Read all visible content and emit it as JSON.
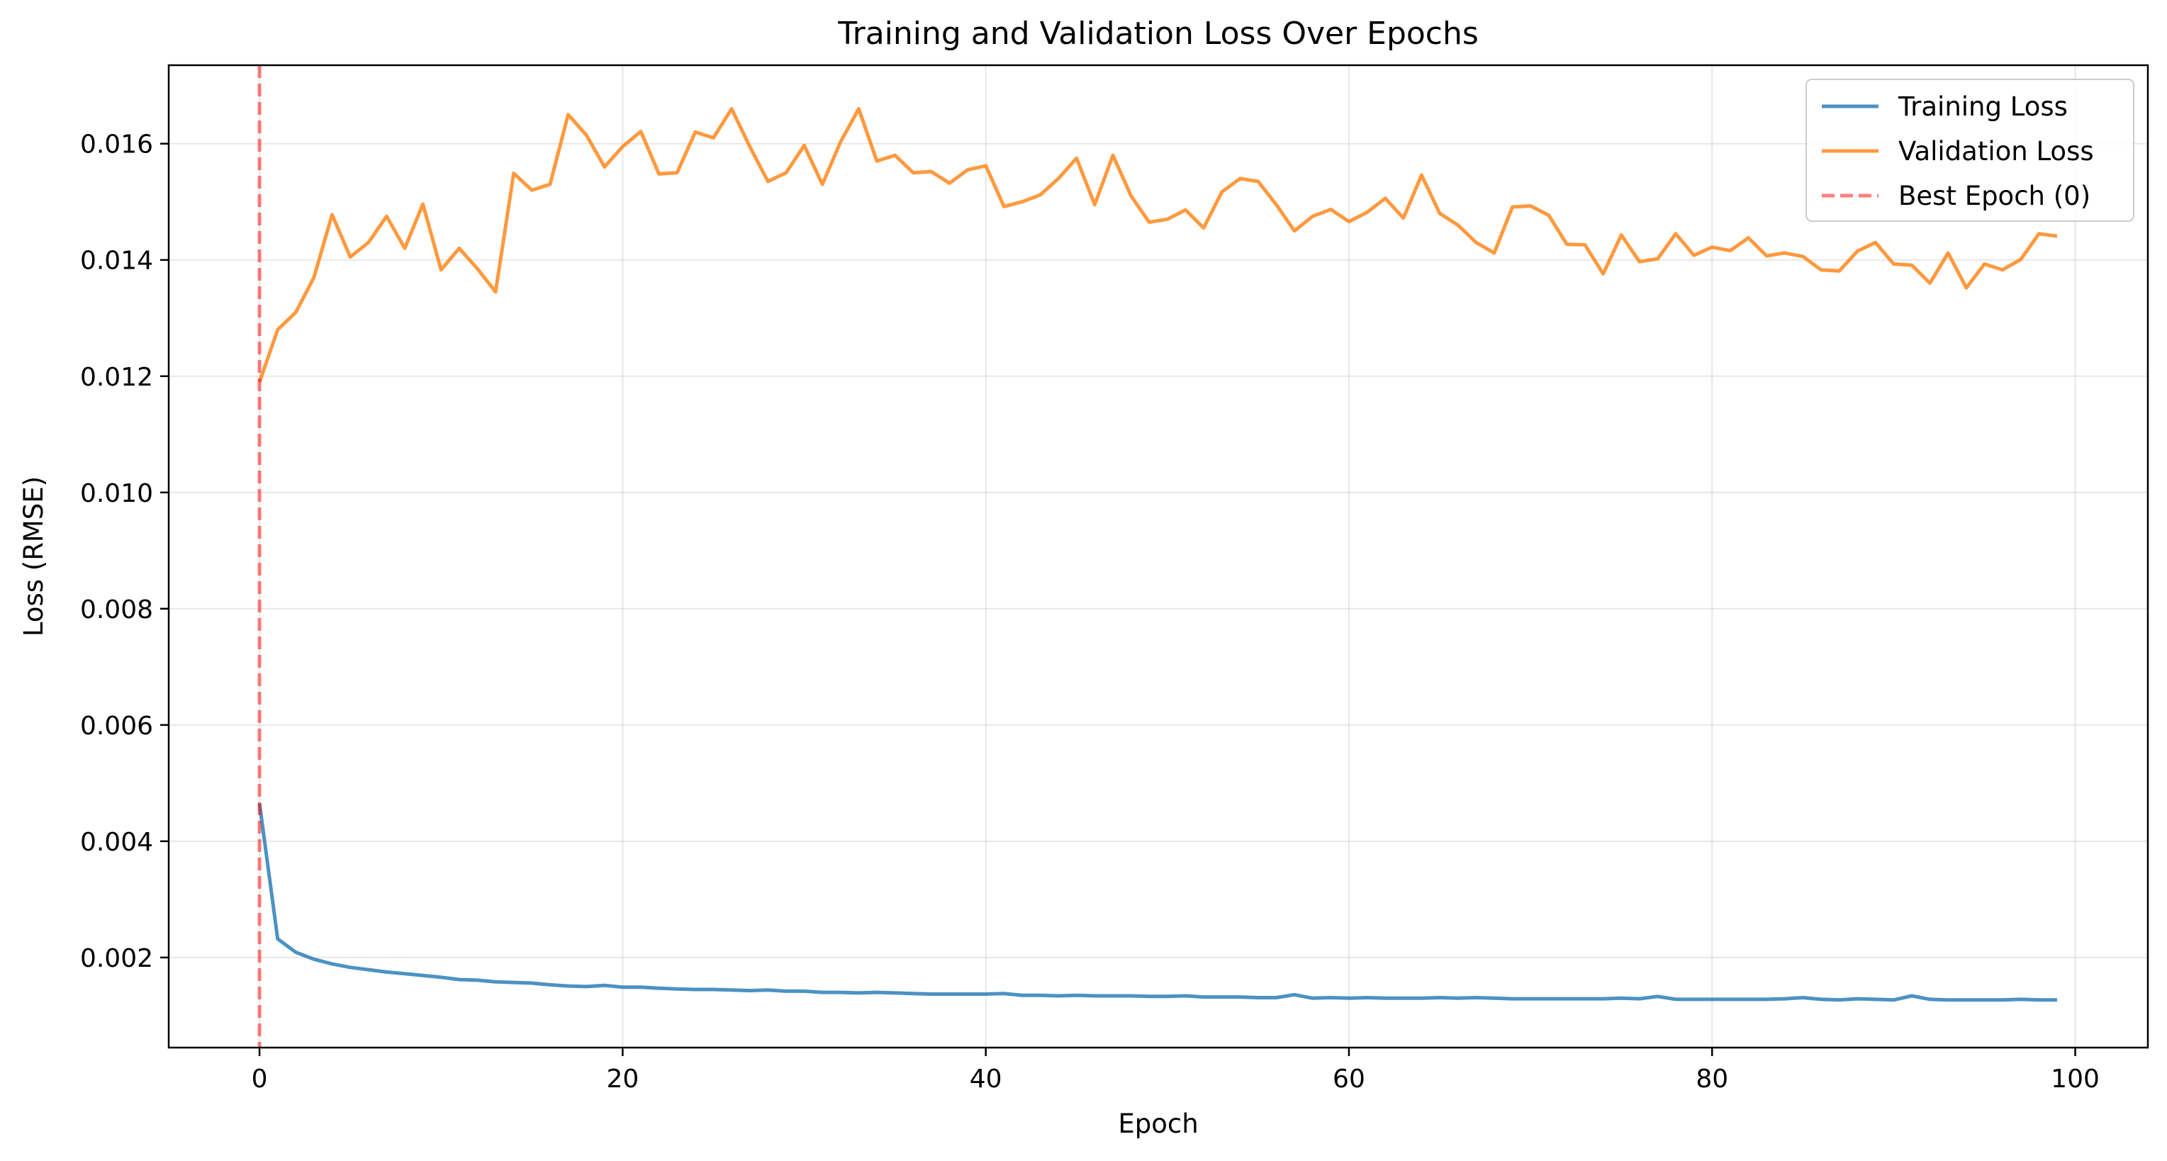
{
  "chart_data": {
    "type": "line",
    "title": "Training and Validation Loss Over Epochs",
    "xlabel": "Epoch",
    "ylabel": "Loss (RMSE)",
    "xlim": [
      -5,
      104
    ],
    "ylim": [
      0.00045,
      0.01735
    ],
    "xticks": [
      0,
      20,
      40,
      60,
      80,
      100
    ],
    "yticks": [
      0.002,
      0.004,
      0.006,
      0.008,
      0.01,
      0.012,
      0.014,
      0.016
    ],
    "xtick_labels": [
      "0",
      "20",
      "40",
      "60",
      "80",
      "100"
    ],
    "ytick_labels": [
      "0.002",
      "0.004",
      "0.006",
      "0.008",
      "0.010",
      "0.012",
      "0.014",
      "0.016"
    ],
    "grid": true,
    "legend_position": "top-right",
    "series": [
      {
        "name": "Training Loss",
        "color": "#1f77b4",
        "style": "solid",
        "x_start": 0,
        "values": [
          0.00465,
          0.00232,
          0.00209,
          0.00197,
          0.00189,
          0.00183,
          0.00179,
          0.00175,
          0.00172,
          0.00169,
          0.00166,
          0.00162,
          0.00161,
          0.00158,
          0.00157,
          0.00156,
          0.00153,
          0.00151,
          0.0015,
          0.00152,
          0.00149,
          0.00149,
          0.00147,
          0.00146,
          0.00145,
          0.00145,
          0.00144,
          0.00143,
          0.00144,
          0.00142,
          0.00142,
          0.0014,
          0.0014,
          0.00139,
          0.0014,
          0.00139,
          0.00138,
          0.00137,
          0.00137,
          0.00137,
          0.00137,
          0.00138,
          0.00135,
          0.00135,
          0.00134,
          0.00135,
          0.00134,
          0.00134,
          0.00134,
          0.00133,
          0.00133,
          0.00134,
          0.00132,
          0.00132,
          0.00132,
          0.00131,
          0.00131,
          0.00136,
          0.0013,
          0.00131,
          0.0013,
          0.00131,
          0.0013,
          0.0013,
          0.0013,
          0.00131,
          0.0013,
          0.00131,
          0.0013,
          0.00129,
          0.00129,
          0.00129,
          0.00129,
          0.00129,
          0.00129,
          0.0013,
          0.00129,
          0.00133,
          0.00128,
          0.00128,
          0.00128,
          0.00128,
          0.00128,
          0.00128,
          0.00129,
          0.00131,
          0.00128,
          0.00127,
          0.00129,
          0.00128,
          0.00127,
          0.00134,
          0.00128,
          0.00127,
          0.00127,
          0.00127,
          0.00127,
          0.00128,
          0.00127,
          0.00127
        ]
      },
      {
        "name": "Validation Loss",
        "color": "#ff7f0e",
        "style": "solid",
        "x_start": 0,
        "values": [
          0.0119,
          0.0128,
          0.0131,
          0.0137,
          0.01478,
          0.01405,
          0.0143,
          0.01475,
          0.0142,
          0.01496,
          0.01383,
          0.0142,
          0.01385,
          0.01345,
          0.01549,
          0.0152,
          0.0153,
          0.0165,
          0.01615,
          0.0156,
          0.01595,
          0.01621,
          0.01548,
          0.0155,
          0.0162,
          0.0161,
          0.0166,
          0.01595,
          0.01535,
          0.0155,
          0.01597,
          0.0153,
          0.01603,
          0.0166,
          0.0157,
          0.0158,
          0.0155,
          0.01552,
          0.01532,
          0.01555,
          0.01562,
          0.01492,
          0.015,
          0.01512,
          0.0154,
          0.01575,
          0.01495,
          0.0158,
          0.0151,
          0.01465,
          0.0147,
          0.01486,
          0.01455,
          0.01517,
          0.0154,
          0.01535,
          0.01495,
          0.0145,
          0.01475,
          0.01487,
          0.01466,
          0.01482,
          0.01506,
          0.01472,
          0.01546,
          0.0148,
          0.0146,
          0.0143,
          0.01412,
          0.01491,
          0.01493,
          0.01477,
          0.01427,
          0.01426,
          0.01376,
          0.01443,
          0.01397,
          0.01402,
          0.01445,
          0.01408,
          0.01422,
          0.01416,
          0.01438,
          0.01407,
          0.01412,
          0.01406,
          0.01383,
          0.01381,
          0.01415,
          0.0143,
          0.01393,
          0.01391,
          0.0136,
          0.01412,
          0.01352,
          0.01393,
          0.01383,
          0.01401,
          0.01445,
          0.01441
        ]
      },
      {
        "name": "Best Epoch (0)",
        "color": "#ff0000",
        "style": "dashed",
        "type": "vline",
        "x": 0
      }
    ]
  }
}
